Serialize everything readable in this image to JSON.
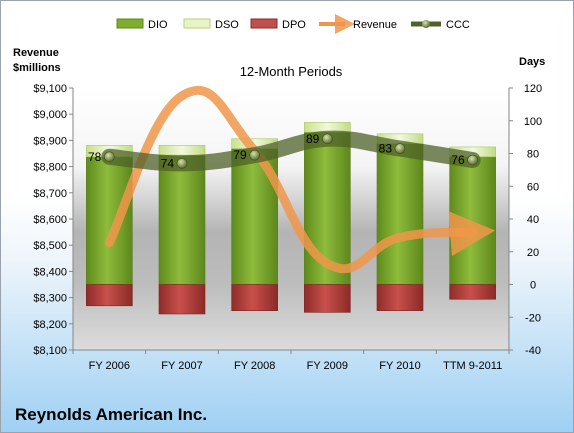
{
  "chart_data": {
    "type": "bar",
    "title": "12-Month Periods",
    "company": "Reynolds American Inc.",
    "categories": [
      "FY 2006",
      "FY 2007",
      "FY 2008",
      "FY 2009",
      "FY 2010",
      "TTM 9-2011"
    ],
    "left_axis": {
      "label_line1": "Revenue",
      "label_line2": "$millions",
      "min": 8100,
      "max": 9100,
      "step": 100,
      "ticks": [
        "$8,100",
        "$8,200",
        "$8,300",
        "$8,400",
        "$8,500",
        "$8,600",
        "$8,700",
        "$8,800",
        "$8,900",
        "$9,000",
        "$9,100"
      ]
    },
    "right_axis": {
      "label": "Days",
      "min": -40,
      "max": 120,
      "step": 20,
      "ticks": [
        "-40",
        "-20",
        "0",
        "20",
        "40",
        "60",
        "80",
        "100",
        "120"
      ]
    },
    "series": [
      {
        "name": "DIO",
        "axis": "right",
        "values": [
          78,
          79,
          83,
          93,
          86,
          78
        ],
        "color": "#7fae2e"
      },
      {
        "name": "DSO",
        "axis": "right",
        "values": [
          7,
          6,
          6,
          6,
          6,
          6
        ],
        "color": "#e0efb9"
      },
      {
        "name": "DPO",
        "axis": "right",
        "values": [
          -13,
          -18,
          -16,
          -17,
          -16,
          -9
        ],
        "color": "#c0504d"
      },
      {
        "name": "Revenue",
        "axis": "left",
        "values": [
          8510,
          9070,
          8860,
          8430,
          8530,
          8550
        ],
        "color": "#f0964a"
      },
      {
        "name": "CCC",
        "axis": "right",
        "values": [
          78,
          74,
          79,
          89,
          83,
          76
        ],
        "color": "#4f6228"
      }
    ],
    "ccc_labels": [
      "78",
      "74",
      "79",
      "89",
      "83",
      "76"
    ]
  }
}
